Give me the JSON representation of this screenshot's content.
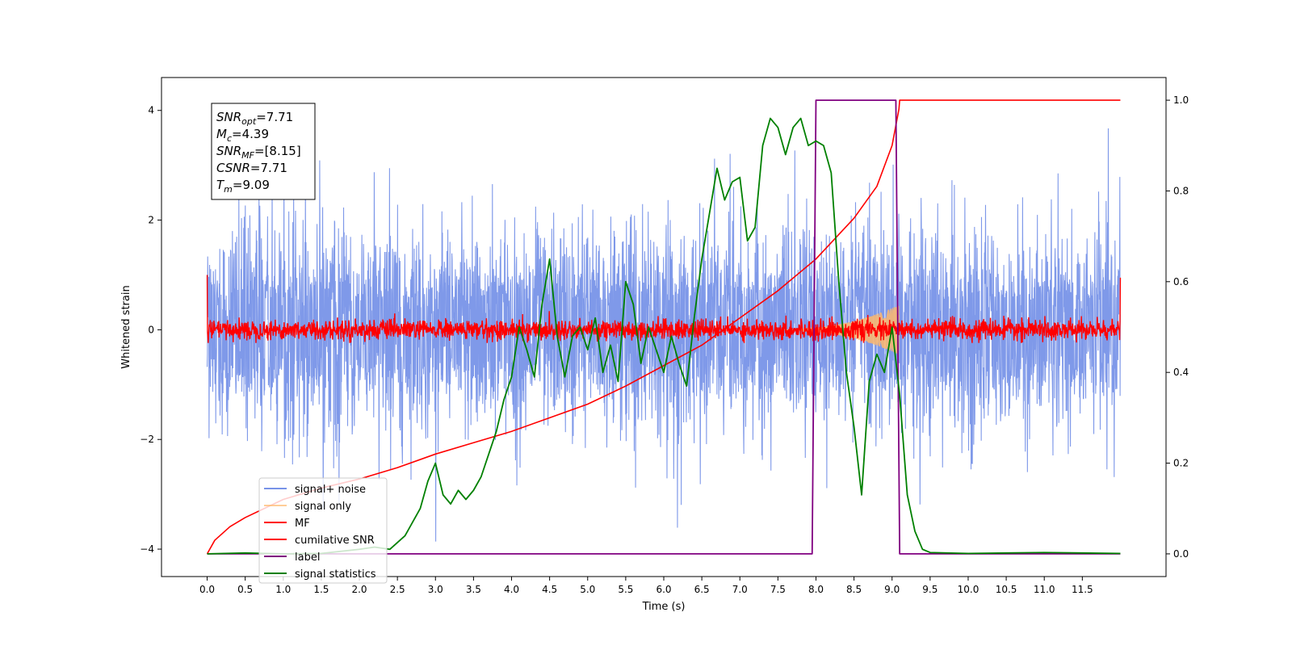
{
  "chart_data": {
    "type": "line",
    "title": "",
    "xlabel": "Time (s)",
    "ylabel": "Whitened strain",
    "y2label": "",
    "xlim": [
      -0.6,
      12.6
    ],
    "ylim": [
      -4.5,
      4.6
    ],
    "y2lim": [
      -0.05,
      1.05
    ],
    "x_ticks": [
      0.0,
      0.5,
      1.0,
      1.5,
      2.0,
      2.5,
      3.0,
      3.5,
      4.0,
      4.5,
      5.0,
      5.5,
      6.0,
      6.5,
      7.0,
      7.5,
      8.0,
      8.5,
      9.0,
      9.5,
      10.0,
      10.5,
      11.0,
      11.5
    ],
    "x_tick_labels": [
      "0.0",
      "0.5",
      "1.0",
      "1.5",
      "2.0",
      "2.5",
      "3.0",
      "3.5",
      "4.0",
      "4.5",
      "5.0",
      "5.5",
      "6.0",
      "6.5",
      "7.0",
      "7.5",
      "8.0",
      "8.5",
      "9.0",
      "9.5",
      "10.0",
      "10.5",
      "11.0",
      "11.5"
    ],
    "y_ticks": [
      -4,
      -2,
      0,
      2,
      4
    ],
    "y_tick_labels": [
      "−4",
      "−2",
      "0",
      "2",
      "4"
    ],
    "y2_ticks": [
      0.0,
      0.2,
      0.4,
      0.6,
      0.8,
      1.0
    ],
    "y2_tick_labels": [
      "0.0",
      "0.2",
      "0.4",
      "0.6",
      "0.8",
      "1.0"
    ],
    "grid": false,
    "legend_position": "lower-left",
    "annotation": {
      "lines": [
        {
          "base": "SNR",
          "sub": "opt",
          "value": "=7.71"
        },
        {
          "base": "M",
          "sub": "c",
          "value": "=4.39"
        },
        {
          "base": "SNR",
          "sub": "MF",
          "value": "=[8.15]"
        },
        {
          "base": "CSNR",
          "sub": "",
          "value": "=7.71"
        },
        {
          "base": "T",
          "sub": "m",
          "value": "=9.09"
        }
      ]
    },
    "series": [
      {
        "name": "signal+ noise",
        "axis": "left",
        "color": "#7893e8",
        "kind": "noise",
        "x_range": [
          0.0,
          12.0
        ],
        "center": 0.0,
        "typical_amplitude": 1.6,
        "peak_amplitude": 4.2
      },
      {
        "name": "signal only",
        "axis": "left",
        "color": "#ffb86b",
        "kind": "chirp",
        "x_range": [
          7.5,
          9.09
        ],
        "peak_amplitude": 0.45
      },
      {
        "name": "MF",
        "axis": "left",
        "color": "#ff0000",
        "kind": "noise",
        "x_range": [
          0.0,
          12.0
        ],
        "center": 0.0,
        "typical_amplitude": 0.18,
        "peak_amplitude": 0.4,
        "edge_values": [
          1.0,
          0.95
        ]
      },
      {
        "name": "cumilative SNR",
        "axis": "right",
        "color": "#ff0000",
        "x": [
          0.0,
          0.1,
          0.3,
          0.5,
          1.0,
          1.5,
          2.0,
          2.5,
          3.0,
          3.5,
          4.0,
          4.5,
          5.0,
          5.5,
          6.0,
          6.5,
          7.0,
          7.5,
          8.0,
          8.5,
          8.8,
          9.0,
          9.09,
          9.1,
          12.0
        ],
        "values": [
          0.0,
          0.03,
          0.06,
          0.08,
          0.12,
          0.145,
          0.165,
          0.19,
          0.22,
          0.245,
          0.27,
          0.3,
          0.33,
          0.37,
          0.415,
          0.46,
          0.52,
          0.58,
          0.65,
          0.74,
          0.81,
          0.9,
          0.98,
          1.0,
          1.0
        ]
      },
      {
        "name": "label",
        "axis": "right",
        "color": "#800080",
        "x": [
          0.0,
          7.95,
          8.0,
          9.05,
          9.1,
          12.0
        ],
        "values": [
          0.0,
          0.0,
          1.0,
          1.0,
          0.0,
          0.0
        ]
      },
      {
        "name": "signal statistics",
        "axis": "right",
        "color": "#008000",
        "x": [
          0.0,
          0.5,
          1.0,
          1.5,
          2.0,
          2.2,
          2.4,
          2.6,
          2.7,
          2.8,
          2.9,
          3.0,
          3.1,
          3.2,
          3.3,
          3.4,
          3.5,
          3.6,
          3.7,
          3.8,
          3.9,
          4.0,
          4.1,
          4.2,
          4.3,
          4.4,
          4.5,
          4.6,
          4.7,
          4.8,
          4.9,
          5.0,
          5.1,
          5.2,
          5.3,
          5.4,
          5.5,
          5.6,
          5.7,
          5.8,
          5.9,
          6.0,
          6.1,
          6.2,
          6.3,
          6.4,
          6.5,
          6.6,
          6.7,
          6.8,
          6.9,
          7.0,
          7.1,
          7.2,
          7.3,
          7.4,
          7.5,
          7.6,
          7.7,
          7.8,
          7.9,
          8.0,
          8.1,
          8.2,
          8.3,
          8.4,
          8.5,
          8.6,
          8.7,
          8.8,
          8.9,
          9.0,
          9.1,
          9.2,
          9.3,
          9.4,
          9.5,
          10.0,
          10.5,
          11.0,
          11.5,
          12.0
        ],
        "values": [
          0.0,
          0.002,
          0.0,
          0.001,
          0.01,
          0.015,
          0.01,
          0.04,
          0.07,
          0.1,
          0.16,
          0.2,
          0.13,
          0.11,
          0.14,
          0.12,
          0.14,
          0.17,
          0.22,
          0.27,
          0.34,
          0.39,
          0.5,
          0.45,
          0.39,
          0.55,
          0.65,
          0.48,
          0.39,
          0.48,
          0.5,
          0.45,
          0.52,
          0.4,
          0.46,
          0.38,
          0.6,
          0.55,
          0.42,
          0.5,
          0.45,
          0.4,
          0.48,
          0.42,
          0.37,
          0.52,
          0.65,
          0.75,
          0.85,
          0.78,
          0.82,
          0.83,
          0.69,
          0.72,
          0.9,
          0.96,
          0.94,
          0.88,
          0.94,
          0.96,
          0.9,
          0.91,
          0.9,
          0.84,
          0.6,
          0.4,
          0.28,
          0.13,
          0.38,
          0.44,
          0.4,
          0.5,
          0.35,
          0.13,
          0.05,
          0.01,
          0.003,
          0.001,
          0.002,
          0.003,
          0.002,
          0.001
        ]
      }
    ]
  }
}
